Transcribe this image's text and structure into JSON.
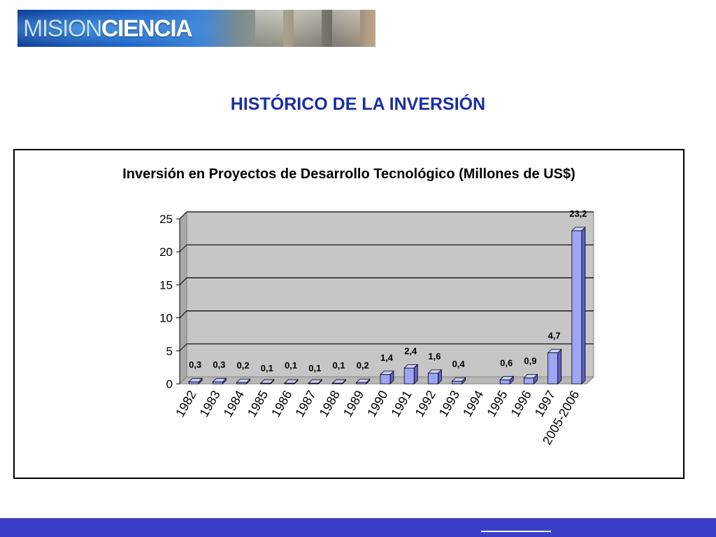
{
  "logo": {
    "part1": "MISION",
    "part2": "CIENCIA"
  },
  "page_title": "HISTÓRICO DE LA INVERSIÓN",
  "colors": {
    "bar_front": "#9ea5f4",
    "bar_top": "#c9cdfb",
    "bar_side": "#5a61c8",
    "plot_bg": "#c6c6c6",
    "title": "#1a2ea6",
    "footer": "#3a3ec8"
  },
  "chart_data": {
    "type": "bar",
    "title": "Inversión en Proyectos de Desarrollo Tecnológico (Millones de US$)",
    "xlabel": "",
    "ylabel": "",
    "ylim": [
      0,
      25
    ],
    "yticks": [
      0,
      5,
      10,
      15,
      20,
      25
    ],
    "grid": true,
    "categories": [
      "1982",
      "1983",
      "1984",
      "1985",
      "1986",
      "1987",
      "1988",
      "1989",
      "1990",
      "1991",
      "1992",
      "1993",
      "1994",
      "1995",
      "1996",
      "1997",
      "2005-2006"
    ],
    "values": [
      0.3,
      0.3,
      0.2,
      0.1,
      0.1,
      0.1,
      0.1,
      0.2,
      1.4,
      2.4,
      1.6,
      0.4,
      null,
      0.6,
      0.9,
      4.7,
      23.2
    ],
    "value_labels": [
      "0,3",
      "0,3",
      "0,2",
      "0,1",
      "0,1",
      "0,1",
      "0,1",
      "0,2",
      "1,4",
      "2,4",
      "1,6",
      "0,4",
      "",
      "0,6",
      "0,9",
      "4,7",
      "23,2"
    ]
  }
}
